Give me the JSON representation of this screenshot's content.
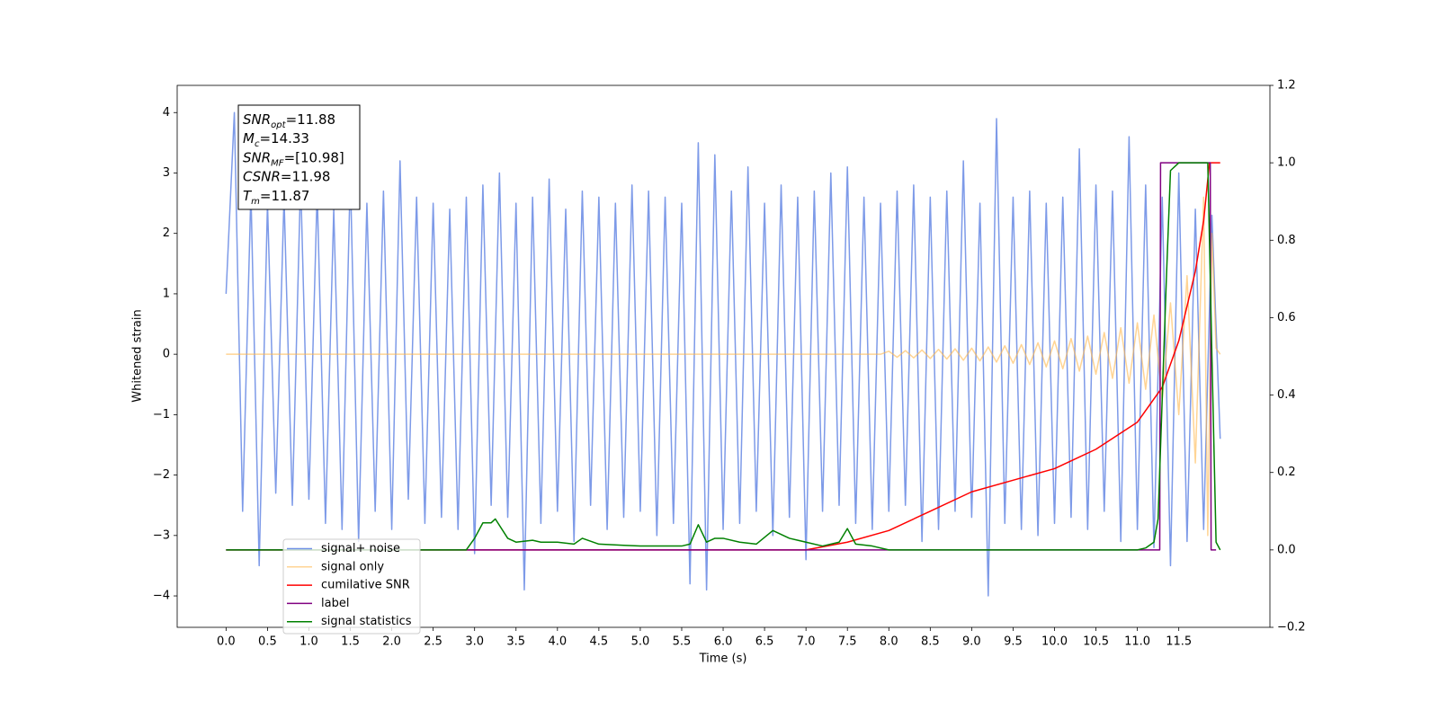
{
  "chart_data": {
    "type": "line",
    "xlabel": "Time (s)",
    "ylabel": "Whitened strain",
    "xlim": [
      -0.59,
      12.6
    ],
    "ylim": [
      -4.52,
      4.45
    ],
    "y2lim": [
      -0.2,
      1.2
    ],
    "xticks": [
      {
        "value": 0,
        "label": "0.0"
      },
      0.5,
      {
        "value": 1,
        "label": "1.0"
      },
      1.5,
      {
        "value": 2,
        "label": "2.0"
      },
      2.5,
      {
        "value": 3,
        "label": "3.0"
      },
      3.5,
      {
        "value": 4,
        "label": "4.0"
      },
      4.5,
      {
        "value": 5,
        "label": "5.0"
      },
      5.5,
      {
        "value": 6,
        "label": "6.0"
      },
      6.5,
      {
        "value": 7,
        "label": "7.0"
      },
      7.5,
      {
        "value": 8,
        "label": "8.0"
      },
      8.5,
      {
        "value": 9,
        "label": "9.0"
      },
      9.5,
      {
        "value": 10,
        "label": "10.0"
      },
      10.5,
      {
        "value": 11,
        "label": "11.0"
      },
      11.5
    ],
    "yticks": [
      {
        "value": -4,
        "label": "−4"
      },
      {
        "value": -3,
        "label": "−3"
      },
      {
        "value": -2,
        "label": "−2"
      },
      {
        "value": -1,
        "label": "−1"
      },
      0,
      1,
      2,
      3,
      4
    ],
    "y2ticks": [
      {
        "value": -0.2,
        "label": "−0.2"
      },
      {
        "value": 0,
        "label": "0.0"
      },
      0.2,
      0.4,
      0.6,
      0.8,
      {
        "value": 1,
        "label": "1.0"
      },
      1.2
    ],
    "annotation": [
      [
        "SNR",
        "opt",
        "=11.88"
      ],
      [
        "M",
        "c",
        "=14.33"
      ],
      [
        "SNR",
        "MF",
        "=[10.98]"
      ],
      [
        "CSNR",
        "",
        "=11.98"
      ],
      [
        "T",
        "m",
        "=11.87"
      ]
    ],
    "series": [
      {
        "name": "signal+ noise",
        "color": "#6f8fe6",
        "x": [
          0.0,
          0.1,
          0.2,
          0.3,
          0.4,
          0.5,
          0.6,
          0.7,
          0.8,
          0.9,
          1.0,
          1.1,
          1.2,
          1.3,
          1.4,
          1.5,
          1.6,
          1.7,
          1.8,
          1.9,
          2.0,
          2.1,
          2.2,
          2.3,
          2.4,
          2.5,
          2.6,
          2.7,
          2.8,
          2.9,
          3.0,
          3.1,
          3.2,
          3.3,
          3.4,
          3.5,
          3.6,
          3.7,
          3.8,
          3.9,
          4.0,
          4.1,
          4.2,
          4.3,
          4.4,
          4.5,
          4.6,
          4.7,
          4.8,
          4.9,
          5.0,
          5.1,
          5.2,
          5.3,
          5.4,
          5.5,
          5.6,
          5.7,
          5.8,
          5.9,
          6.0,
          6.1,
          6.2,
          6.3,
          6.4,
          6.5,
          6.6,
          6.7,
          6.8,
          6.9,
          7.0,
          7.1,
          7.2,
          7.3,
          7.4,
          7.5,
          7.6,
          7.7,
          7.8,
          7.9,
          8.0,
          8.1,
          8.2,
          8.3,
          8.4,
          8.5,
          8.6,
          8.7,
          8.8,
          8.9,
          9.0,
          9.1,
          9.2,
          9.3,
          9.4,
          9.5,
          9.6,
          9.7,
          9.8,
          9.9,
          10.0,
          10.1,
          10.2,
          10.3,
          10.4,
          10.5,
          10.6,
          10.7,
          10.8,
          10.9,
          11.0,
          11.1,
          11.2,
          11.3,
          11.4,
          11.5,
          11.6,
          11.7,
          11.8,
          11.9,
          12.0
        ],
        "values": [
          1.0,
          4.0,
          -2.6,
          2.7,
          -3.5,
          2.5,
          -2.3,
          2.6,
          -2.5,
          2.9,
          -2.4,
          2.7,
          -2.8,
          2.4,
          -2.9,
          3.0,
          -3.1,
          2.5,
          -2.6,
          2.7,
          -2.9,
          3.2,
          -2.4,
          2.6,
          -2.8,
          2.5,
          -2.7,
          2.4,
          -2.9,
          2.6,
          -3.3,
          2.8,
          -2.5,
          3.0,
          -2.7,
          2.5,
          -3.9,
          2.6,
          -2.8,
          2.9,
          -2.6,
          2.4,
          -3.1,
          2.7,
          -2.5,
          2.6,
          -2.9,
          2.5,
          -2.7,
          2.8,
          -2.6,
          2.7,
          -3.0,
          2.6,
          -2.8,
          2.5,
          -3.8,
          3.5,
          -3.9,
          3.3,
          -2.9,
          2.7,
          -2.8,
          3.1,
          -2.6,
          2.5,
          -3.0,
          2.8,
          -2.7,
          2.6,
          -3.4,
          2.7,
          -2.6,
          3.0,
          -2.5,
          3.1,
          -2.8,
          2.6,
          -2.9,
          2.5,
          -2.6,
          2.7,
          -2.5,
          2.8,
          -3.1,
          2.6,
          -2.9,
          2.7,
          -2.6,
          3.2,
          -2.7,
          2.5,
          -4.0,
          3.9,
          -2.8,
          2.6,
          -2.9,
          2.7,
          -3.0,
          2.5,
          -2.8,
          2.6,
          -2.7,
          3.4,
          -2.9,
          2.8,
          -2.6,
          2.7,
          -3.1,
          3.6,
          -2.9,
          2.8,
          -3.2,
          2.6,
          -3.5,
          3.0,
          -3.1,
          2.4,
          -2.9,
          2.3,
          -1.4
        ]
      },
      {
        "name": "signal only",
        "color": "#ffb84d",
        "x": [
          0.0,
          7.9,
          8.0,
          8.1,
          8.2,
          8.3,
          8.4,
          8.5,
          8.6,
          8.7,
          8.8,
          8.9,
          9.0,
          9.1,
          9.2,
          9.3,
          9.4,
          9.5,
          9.6,
          9.7,
          9.8,
          9.9,
          10.0,
          10.1,
          10.2,
          10.3,
          10.4,
          10.5,
          10.6,
          10.7,
          10.8,
          10.9,
          11.0,
          11.1,
          11.2,
          11.3,
          11.4,
          11.5,
          11.6,
          11.7,
          11.8,
          11.85,
          11.9,
          11.95,
          12.0
        ],
        "values": [
          0,
          0,
          0.05,
          -0.05,
          0.06,
          -0.06,
          0.07,
          -0.07,
          0.08,
          -0.08,
          0.09,
          -0.1,
          0.1,
          -0.11,
          0.12,
          -0.13,
          0.14,
          -0.15,
          0.16,
          -0.17,
          0.19,
          -0.21,
          0.22,
          -0.24,
          0.26,
          -0.28,
          0.3,
          -0.33,
          0.36,
          -0.4,
          0.44,
          -0.48,
          0.52,
          -0.58,
          0.65,
          -0.75,
          0.85,
          -1.0,
          1.3,
          -1.8,
          2.6,
          -3.0,
          2.0,
          0.1,
          0
        ]
      },
      {
        "name": "cumilative SNR",
        "color": "#ff0000",
        "axis": "y2",
        "x": [
          0.0,
          7.0,
          7.5,
          8.0,
          8.5,
          9.0,
          9.5,
          10.0,
          10.5,
          11.0,
          11.3,
          11.5,
          11.7,
          11.8,
          11.87,
          12.0
        ],
        "values": [
          0,
          0,
          0.02,
          0.05,
          0.1,
          0.15,
          0.18,
          0.21,
          0.26,
          0.33,
          0.42,
          0.54,
          0.72,
          0.85,
          1.0,
          1.0
        ]
      },
      {
        "name": "label",
        "color": "#800080",
        "axis": "y2",
        "x": [
          0.0,
          11.27,
          11.28,
          11.88,
          11.89,
          11.95
        ],
        "values": [
          0,
          0,
          1,
          1,
          0,
          0
        ]
      },
      {
        "name": "signal statistics",
        "color": "#008000",
        "axis": "y2",
        "x": [
          0.0,
          2.9,
          3.0,
          3.1,
          3.2,
          3.25,
          3.4,
          3.5,
          3.7,
          3.8,
          4.0,
          4.2,
          4.3,
          4.5,
          4.8,
          5.0,
          5.5,
          5.6,
          5.7,
          5.8,
          5.9,
          6.0,
          6.2,
          6.4,
          6.6,
          6.8,
          7.0,
          7.2,
          7.4,
          7.5,
          7.6,
          7.8,
          8.0,
          11.0,
          11.1,
          11.2,
          11.25,
          11.35,
          11.4,
          11.5,
          11.85,
          11.9,
          11.95,
          12.0
        ],
        "values": [
          0,
          0,
          0.03,
          0.07,
          0.07,
          0.08,
          0.03,
          0.02,
          0.025,
          0.02,
          0.02,
          0.015,
          0.03,
          0.015,
          0.012,
          0.01,
          0.01,
          0.015,
          0.065,
          0.02,
          0.03,
          0.03,
          0.02,
          0.015,
          0.05,
          0.03,
          0.02,
          0.01,
          0.02,
          0.055,
          0.015,
          0.01,
          0,
          0,
          0.005,
          0.02,
          0.08,
          0.7,
          0.98,
          1.0,
          1.0,
          0.5,
          0.02,
          0
        ]
      }
    ]
  }
}
